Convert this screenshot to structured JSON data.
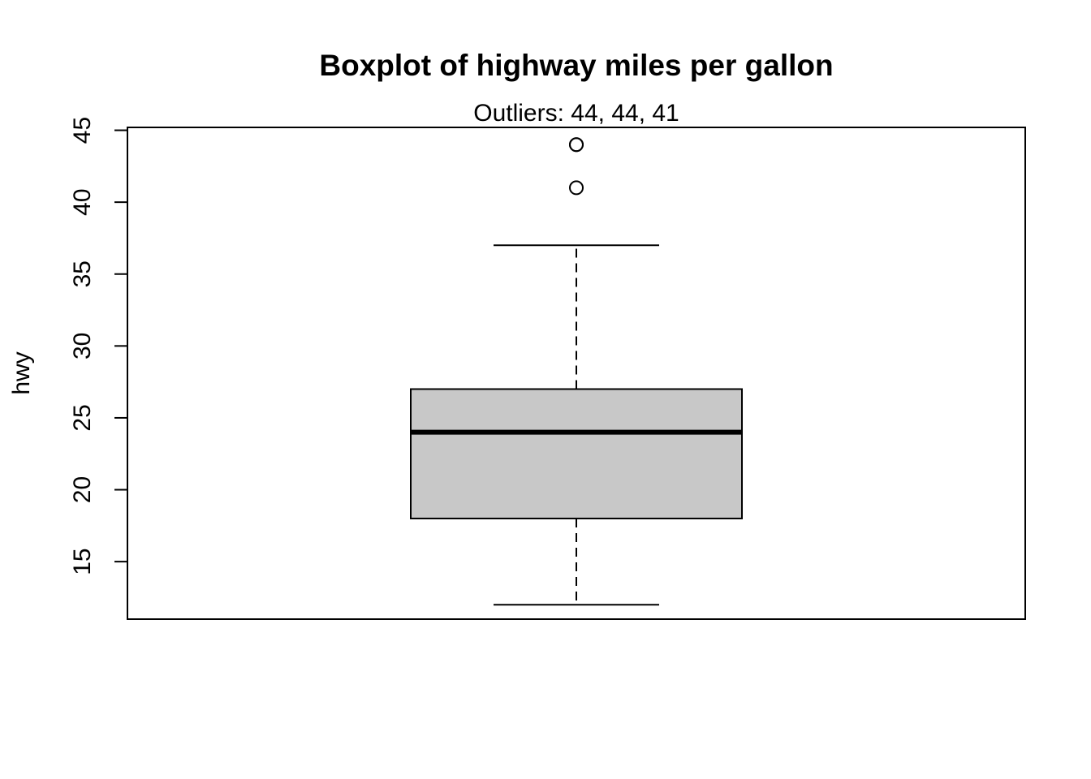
{
  "chart_data": {
    "type": "boxplot",
    "title": "Boxplot of highway miles per gallon",
    "subtitle": "Outliers:  44, 44, 41",
    "xlabel": "",
    "ylabel": "hwy",
    "ylim": [
      11,
      45.2
    ],
    "yticks": [
      15,
      20,
      25,
      30,
      35,
      40,
      45
    ],
    "grid": false,
    "series": [
      {
        "whisker_low": 12,
        "q1": 18,
        "median": 24,
        "q3": 27,
        "whisker_high": 37,
        "outliers": [
          44,
          44,
          41
        ]
      }
    ],
    "colors": {
      "box_fill": "#c8c8c8",
      "line": "#000000"
    }
  }
}
